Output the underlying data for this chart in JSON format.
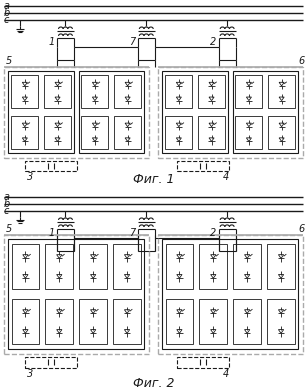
{
  "bg_color": "#ffffff",
  "line_color": "#1a1a1a",
  "gray_color": "#aaaaaa",
  "fig1_caption": "Фиг. 1",
  "fig2_caption": "Фиг. 2"
}
